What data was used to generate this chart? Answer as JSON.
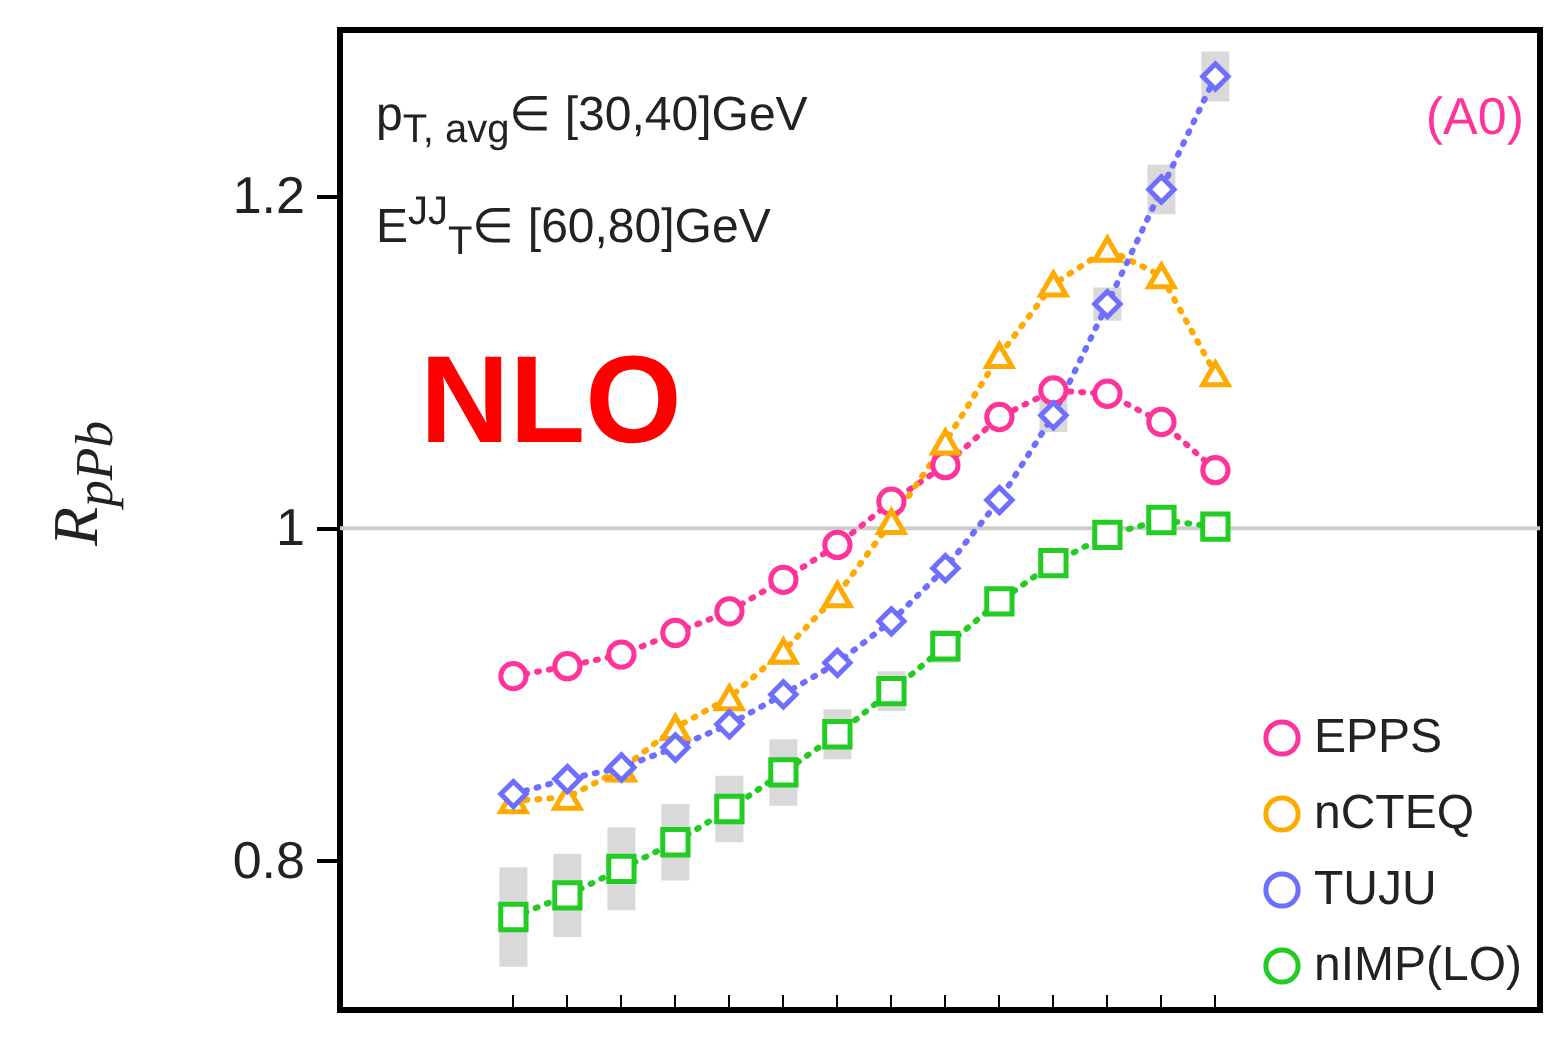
{
  "chart_data": {
    "type": "line",
    "ylabel": "R$_{pPb}$",
    "annotations": [
      "p$_{T, avg}$∈ [30,40]GeV",
      "E$^{JJ}$$_{T}$∈ [60,80]GeV",
      "NLO",
      "(A0)"
    ],
    "categories": [
      null,
      null,
      null,
      null,
      null,
      null,
      null,
      null,
      null,
      null,
      null,
      null,
      null,
      null
    ],
    "series": [
      {
        "name": "EPPS",
        "color": "#ff3399",
        "marker": "circle",
        "values": [
          0.911,
          0.917,
          0.924,
          0.937,
          0.95,
          0.969,
          0.99,
          1.016,
          1.038,
          1.067,
          1.083,
          1.081,
          1.064,
          1.035
        ]
      },
      {
        "name": "nCTEQ",
        "color": "#ffaa00",
        "marker": "triangle",
        "values": [
          0.836,
          0.838,
          0.855,
          0.88,
          0.898,
          0.926,
          0.96,
          1.004,
          1.052,
          1.104,
          1.147,
          1.168,
          1.152,
          1.093
        ]
      },
      {
        "name": "TUJU",
        "color": "#6f6fff",
        "marker": "diamond",
        "values": [
          0.84,
          0.849,
          0.856,
          0.868,
          0.882,
          0.9,
          0.919,
          0.944,
          0.976,
          1.017,
          1.068,
          1.135,
          1.204,
          1.272
        ],
        "errors": [
          null,
          null,
          null,
          null,
          null,
          null,
          null,
          null,
          null,
          null,
          0.01,
          0.01,
          0.015,
          0.015
        ]
      },
      {
        "name": "nIMP(LO)",
        "color": "#22cc22",
        "marker": "square",
        "values": [
          0.766,
          0.779,
          0.795,
          0.811,
          0.831,
          0.853,
          0.876,
          0.902,
          0.929,
          0.956,
          0.979,
          0.996,
          1.005,
          1.001
        ],
        "errors": [
          0.03,
          0.025,
          0.025,
          0.023,
          0.02,
          0.02,
          0.015,
          0.012,
          0.01,
          0.008,
          null,
          null,
          null,
          null
        ]
      }
    ],
    "ylim": [
      0.71,
      1.3
    ],
    "yticks": [
      0.8,
      1,
      1.2
    ],
    "ref_lines": [
      {
        "axis": "y",
        "value": 1,
        "color": "#cccccc"
      }
    ],
    "legend": "bottom right",
    "line_style": "dotted",
    "tick_labels": "y",
    "grid": false
  }
}
